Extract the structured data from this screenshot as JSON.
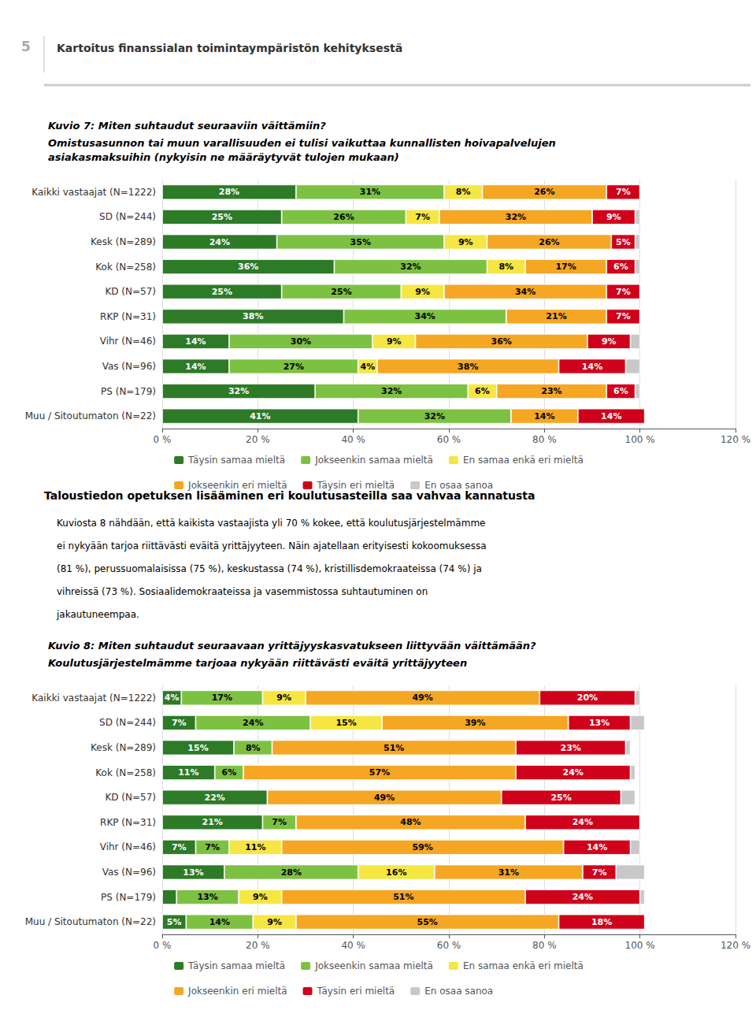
{
  "chart_data": [
    {
      "type": "bar",
      "orientation": "horizontal",
      "stacked": true,
      "data_labels": true,
      "grid": true,
      "legend": "bottom",
      "annotations": [
        "5",
        "Kartoitus finanssialan toimintaympäristön kehityksestä"
      ],
      "title": "Kuvio 7: Miten suhtaudut seuraaviin väittämiin?",
      "subtitle": "Omistusasunnon tai muun varallisuuden ei tulisi vaikuttaa kunnallisten hoivapalvelujen\nasiakasmaksuihin (nykyisin ne määräytyvät tulojen mukaan)",
      "categories": [
        "Kaikki vastaajat (N=1222)",
        "SD (N=244)",
        "Kesk (N=289)",
        "Kok (N=258)",
        "KD (N=57)",
        "RKP (N=31)",
        "Vihr (N=46)",
        "Vas (N=96)",
        "PS (N=179)",
        "Muu / Sitoutumaton (N=22)"
      ],
      "xlim": [
        0,
        120
      ],
      "xticks": [
        {
          "value": 0,
          "label": "0 %"
        },
        {
          "value": 20,
          "label": "20 %"
        },
        {
          "value": 40,
          "label": "40 %"
        },
        {
          "value": 60,
          "label": "60 %"
        },
        {
          "value": 80,
          "label": "80 %"
        },
        {
          "value": 100,
          "label": "100 %"
        },
        {
          "value": 120,
          "label": "120 %"
        }
      ],
      "series": [
        {
          "name": "Täysin samaa mieltä",
          "color": "#2d7a27",
          "values": [
            28,
            25,
            24,
            36,
            25,
            38,
            14,
            14,
            32,
            41
          ],
          "value_labels": [
            "28%",
            "25%",
            "24%",
            "36%",
            "25%",
            "38%",
            "14%",
            "14%",
            "32%",
            "41%"
          ]
        },
        {
          "name": "Jokseenkin samaa mieltä",
          "color": "#7dc142",
          "values": [
            31,
            26,
            35,
            32,
            25,
            34,
            30,
            27,
            32,
            32
          ],
          "value_labels": [
            "31%",
            "26%",
            "35%",
            "32%",
            "25%",
            "34%",
            "30%",
            "27%",
            "32%",
            "32%"
          ]
        },
        {
          "name": "En samaa enkä eri mieltä",
          "color": "#f5e642",
          "values": [
            8,
            7,
            9,
            8,
            9,
            0,
            9,
            4,
            6,
            0
          ],
          "value_labels": [
            "8%",
            "7%",
            "9%",
            "8%",
            "9%",
            null,
            "9%",
            "4%",
            "6%",
            null
          ]
        },
        {
          "name": "Jokseenkin eri mieltä",
          "color": "#f5a623",
          "values": [
            26,
            32,
            26,
            17,
            34,
            21,
            36,
            38,
            23,
            14
          ],
          "value_labels": [
            "26%",
            "32%",
            "26%",
            "17%",
            "34%",
            "21%",
            "36%",
            "38%",
            "23%",
            "14%"
          ]
        },
        {
          "name": "Täysin eri mieltä",
          "color": "#d0021b",
          "values": [
            7,
            9,
            5,
            6,
            7,
            7,
            9,
            14,
            6,
            14
          ],
          "value_labels": [
            "7%",
            "9%",
            "5%",
            "6%",
            "7%",
            "7%",
            "9%",
            "14%",
            "6%",
            "14%"
          ]
        },
        {
          "name": "En osaa sanoa",
          "color": "#c8c8c8",
          "values": [
            0,
            1,
            1,
            1,
            0,
            0,
            2,
            3,
            1,
            0
          ],
          "value_labels": [
            null,
            null,
            null,
            null,
            null,
            null,
            null,
            null,
            null,
            null
          ]
        }
      ]
    },
    {
      "type": "bar",
      "orientation": "horizontal",
      "stacked": true,
      "data_labels": true,
      "grid": true,
      "legend": "bottom",
      "annotations": [
        "Taloustiedon opetuksen lisääminen eri koulutusasteilla saa vahvaa kannatusta",
        "Kuviosta 8 nähdään, että kaikista vastaajista yli 70 % kokee, että koulutusjärjestelmämme",
        "ei nykyään tarjoa riittävästi eväitä yrittäjyyteen. Näin ajatellaan erityisesti kokoomuksessa",
        "(81 %), perussuomalaisissa (75 %), keskustassa (74 %), kristillisdemokraateissa (74 %) ja",
        "vihreissä (73 %). Sosiaalidemokraateissa ja vasemmistossa suhtautuminen on",
        "jakautuneempaa."
      ],
      "title": "Kuvio 8: Miten suhtaudut seuraavaan yrittäjyyskasvatukseen liittyvään väittämään?",
      "subtitle": "Koulutusjärjestelmämme tarjoaa nykyään riittävästi eväitä yrittäjyyteen",
      "categories": [
        "Kaikki vastaajat (N=1222)",
        "SD (N=244)",
        "Kesk (N=289)",
        "Kok (N=258)",
        "KD (N=57)",
        "RKP (N=31)",
        "Vihr (N=46)",
        "Vas (N=96)",
        "PS (N=179)",
        "Muu / Sitoutumaton (N=22)"
      ],
      "xlim": [
        0,
        120
      ],
      "xticks": [
        {
          "value": 0,
          "label": "0 %"
        },
        {
          "value": 20,
          "label": "20 %"
        },
        {
          "value": 40,
          "label": "40 %"
        },
        {
          "value": 60,
          "label": "60 %"
        },
        {
          "value": 80,
          "label": "80 %"
        },
        {
          "value": 100,
          "label": "100 %"
        },
        {
          "value": 120,
          "label": "120 %"
        }
      ],
      "series": [
        {
          "name": "Täysin samaa mieltä",
          "color": "#2d7a27",
          "values": [
            4,
            7,
            15,
            11,
            22,
            21,
            7,
            13,
            3,
            5
          ],
          "value_labels": [
            "4%",
            "7%",
            "15%",
            "11%",
            "22%",
            "21%",
            "7%",
            "13%",
            null,
            "5%"
          ]
        },
        {
          "name": "Jokseenkin samaa mieltä",
          "color": "#7dc142",
          "values": [
            17,
            24,
            8,
            6,
            0,
            7,
            7,
            28,
            13,
            14
          ],
          "value_labels": [
            "17%",
            "24%",
            "8%",
            "6%",
            null,
            "7%",
            "7%",
            "28%",
            "13%",
            "14%"
          ]
        },
        {
          "name": "En samaa enkä eri mieltä",
          "color": "#f5e642",
          "values": [
            9,
            15,
            0,
            0,
            0,
            0,
            11,
            16,
            9,
            9
          ],
          "value_labels": [
            "9%",
            "15%",
            null,
            null,
            null,
            null,
            "11%",
            "16%",
            "9%",
            "9%"
          ]
        },
        {
          "name": "Jokseenkin eri mieltä",
          "color": "#f5a623",
          "values": [
            49,
            39,
            51,
            57,
            49,
            48,
            59,
            31,
            51,
            55
          ],
          "value_labels": [
            "49%",
            "39%",
            "51%",
            "57%",
            "49%",
            "48%",
            "59%",
            "31%",
            "51%",
            "55%"
          ]
        },
        {
          "name": "Täysin eri mieltä",
          "color": "#d0021b",
          "values": [
            20,
            13,
            23,
            24,
            25,
            24,
            14,
            7,
            24,
            18
          ],
          "value_labels": [
            "20%",
            "13%",
            "23%",
            "24%",
            "25%",
            "24%",
            "14%",
            "7%",
            "24%",
            "18%"
          ]
        },
        {
          "name": "En osaa sanoa",
          "color": "#c8c8c8",
          "values": [
            1,
            3,
            1,
            1,
            3,
            0,
            2,
            6,
            1,
            0
          ],
          "value_labels": [
            null,
            null,
            null,
            null,
            null,
            null,
            null,
            null,
            null,
            null
          ]
        }
      ]
    }
  ]
}
